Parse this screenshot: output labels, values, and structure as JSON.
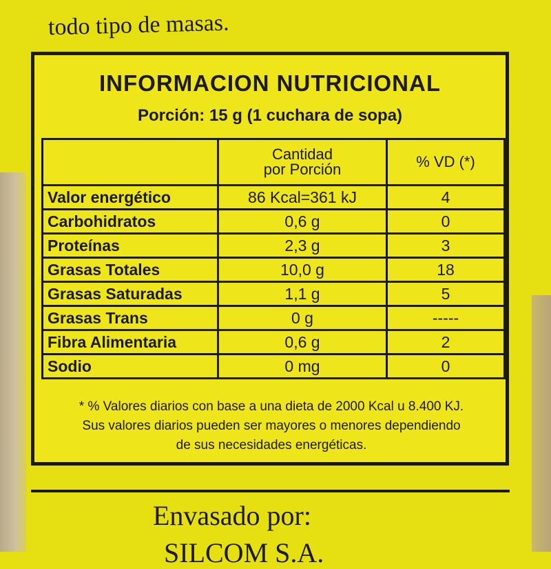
{
  "package_text": {
    "top_line": "todo tipo de masas.",
    "packed_by": "Envasado por:",
    "company": "SILCOM S.A."
  },
  "label": {
    "title": "INFORMACION NUTRICIONAL",
    "portion": "Porción: 15 g (1 cuchara de sopa)",
    "header": {
      "amount": "Cantidad\npor Porción",
      "dv": "% VD (*)"
    },
    "rows": [
      [
        "Valor energético",
        "86 Kcal=361 kJ",
        "4"
      ],
      [
        "Carbohidratos",
        "0,6 g",
        "0"
      ],
      [
        "Proteínas",
        "2,3 g",
        "3"
      ],
      [
        "Grasas Totales",
        "10,0 g",
        "18"
      ],
      [
        "Grasas Saturadas",
        "1,1 g",
        "5"
      ],
      [
        "Grasas Trans",
        "0 g",
        "-----"
      ],
      [
        "Fibra Alimentaria",
        "0,6 g",
        "2"
      ],
      [
        "Sodio",
        "0 mg",
        "0"
      ]
    ],
    "footnote": [
      "* % Valores diarios con base a una dieta de 2000 Kcal u 8.400 KJ.",
      "Sus valores diarios pueden ser mayores o menores dependiendo",
      "de sus necesidades energéticas."
    ]
  }
}
